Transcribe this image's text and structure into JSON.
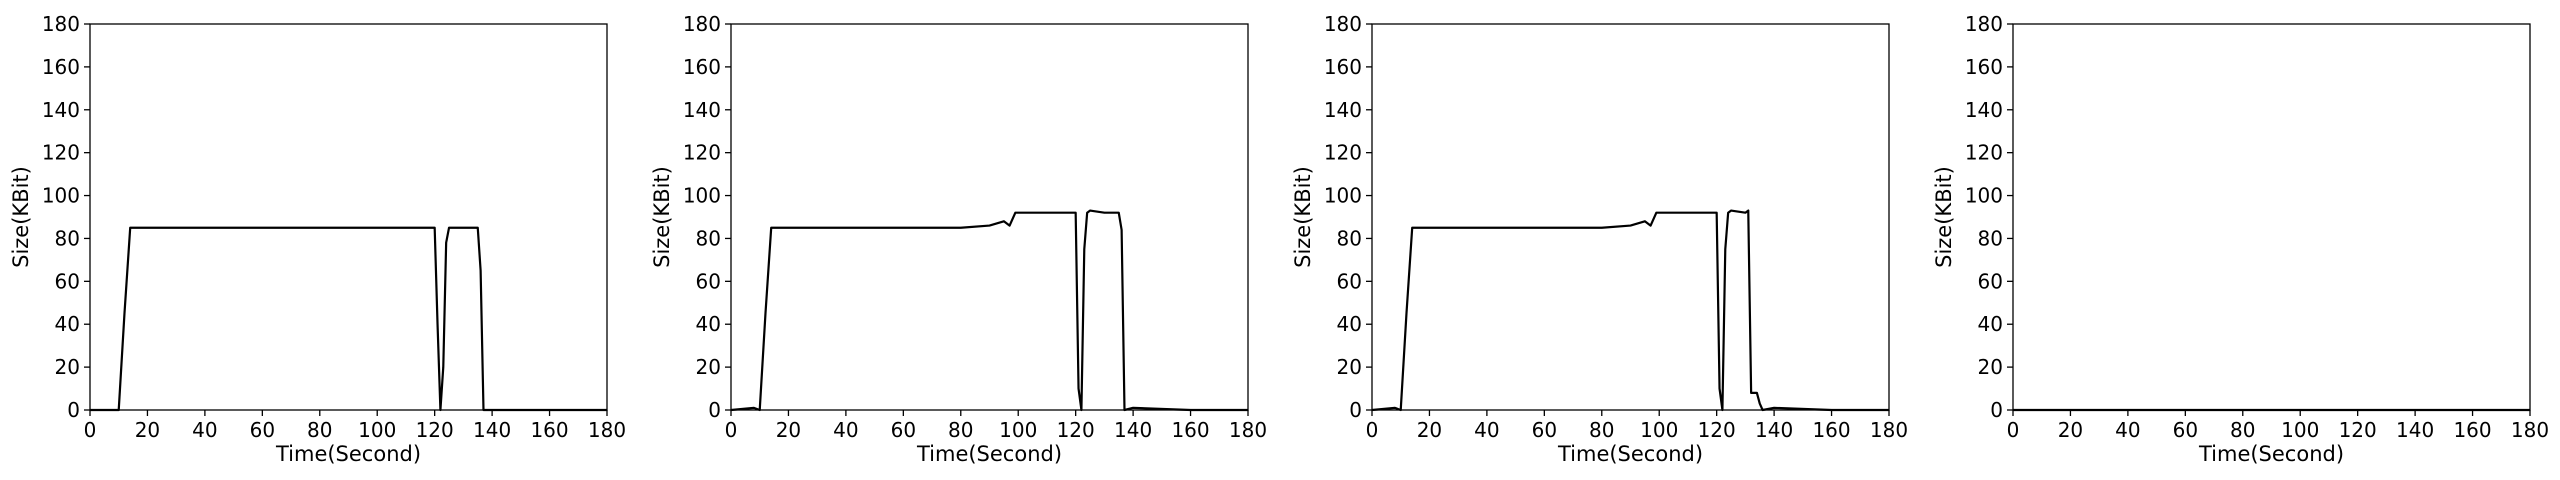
{
  "chart_data": [
    {
      "type": "line",
      "xlabel": "Time(Second)",
      "ylabel": "Size(KBit)",
      "xlim": [
        0,
        180
      ],
      "ylim": [
        0,
        180
      ],
      "xticks": [
        0,
        20,
        40,
        60,
        80,
        100,
        120,
        140,
        160,
        180
      ],
      "yticks": [
        0,
        20,
        40,
        60,
        80,
        100,
        120,
        140,
        160,
        180
      ],
      "grid": false,
      "series": [
        {
          "color": "#000000",
          "x": [
            0,
            8,
            10,
            12,
            14,
            40,
            80,
            120,
            121,
            122,
            123,
            124,
            125,
            130,
            135,
            136,
            137,
            138,
            140,
            180
          ],
          "y": [
            0,
            0,
            0,
            45,
            85,
            85,
            85,
            85,
            40,
            0,
            20,
            78,
            85,
            85,
            85,
            65,
            0,
            0,
            0,
            0
          ]
        }
      ]
    },
    {
      "type": "line",
      "xlabel": "Time(Second)",
      "ylabel": "Size(KBit)",
      "xlim": [
        0,
        180
      ],
      "ylim": [
        0,
        180
      ],
      "xticks": [
        0,
        20,
        40,
        60,
        80,
        100,
        120,
        140,
        160,
        180
      ],
      "yticks": [
        0,
        20,
        40,
        60,
        80,
        100,
        120,
        140,
        160,
        180
      ],
      "grid": false,
      "series": [
        {
          "color": "#000000",
          "x": [
            0,
            8,
            10,
            12,
            14,
            20,
            40,
            60,
            80,
            90,
            95,
            97,
            99,
            100,
            110,
            120,
            121,
            122,
            123,
            124,
            125,
            130,
            135,
            136,
            137,
            140,
            160,
            180
          ],
          "y": [
            0,
            1,
            0,
            45,
            85,
            85,
            85,
            85,
            85,
            86,
            88,
            86,
            92,
            92,
            92,
            92,
            10,
            0,
            75,
            92,
            93,
            92,
            92,
            84,
            0,
            1,
            0,
            0
          ]
        }
      ]
    },
    {
      "type": "line",
      "xlabel": "Time(Second)",
      "ylabel": "Size(KBit)",
      "xlim": [
        0,
        180
      ],
      "ylim": [
        0,
        180
      ],
      "xticks": [
        0,
        20,
        40,
        60,
        80,
        100,
        120,
        140,
        160,
        180
      ],
      "yticks": [
        0,
        20,
        40,
        60,
        80,
        100,
        120,
        140,
        160,
        180
      ],
      "grid": false,
      "series": [
        {
          "color": "#000000",
          "x": [
            0,
            8,
            10,
            12,
            14,
            20,
            40,
            60,
            80,
            90,
            95,
            97,
            99,
            100,
            110,
            120,
            121,
            122,
            123,
            124,
            125,
            130,
            131,
            132,
            134,
            135,
            136,
            140,
            160,
            180
          ],
          "y": [
            0,
            1,
            0,
            45,
            85,
            85,
            85,
            85,
            85,
            86,
            88,
            86,
            92,
            92,
            92,
            92,
            10,
            0,
            75,
            92,
            93,
            92,
            93,
            8,
            8,
            3,
            0,
            1,
            0,
            0
          ]
        }
      ]
    },
    {
      "type": "line",
      "xlabel": "Time(Second)",
      "ylabel": "Size(KBit)",
      "xlim": [
        0,
        180
      ],
      "ylim": [
        0,
        180
      ],
      "xticks": [
        0,
        20,
        40,
        60,
        80,
        100,
        120,
        140,
        160,
        180
      ],
      "yticks": [
        0,
        20,
        40,
        60,
        80,
        100,
        120,
        140,
        160,
        180
      ],
      "grid": false,
      "series": [
        {
          "color": "#000000",
          "x": [
            0,
            180
          ],
          "y": [
            0,
            0
          ]
        }
      ]
    }
  ]
}
